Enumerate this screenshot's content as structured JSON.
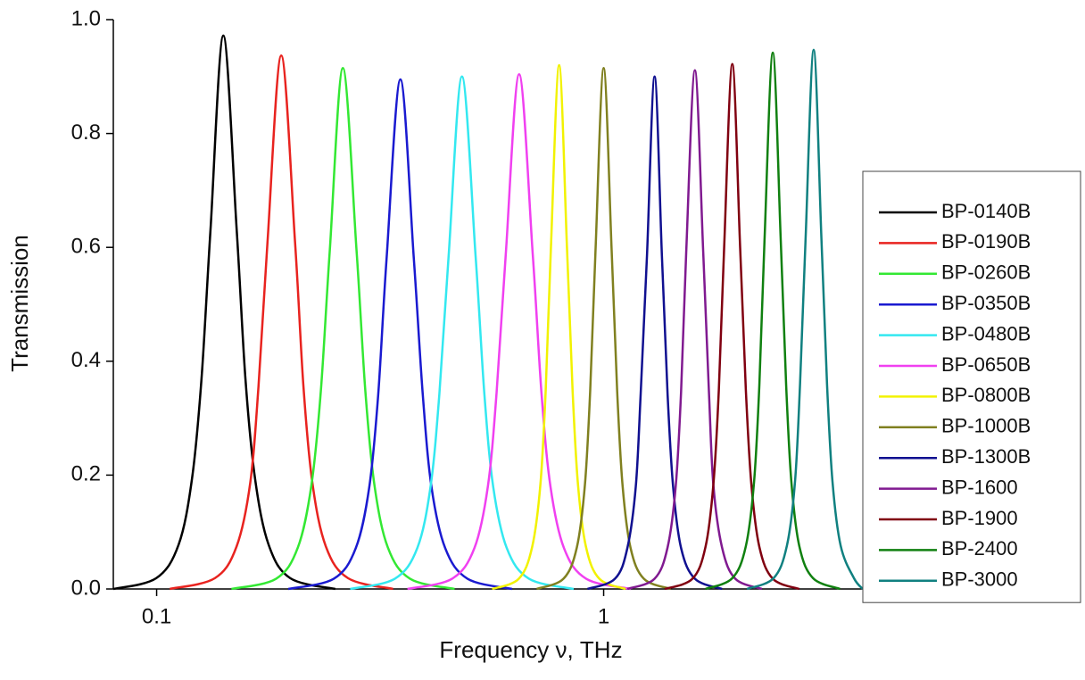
{
  "chart_data": {
    "type": "line",
    "xlabel": "Frequency ν, THz",
    "ylabel": "Transmission",
    "xscale": "log",
    "xlim": [
      0.08,
      3.8
    ],
    "xticks": [
      0.1,
      1
    ],
    "ylim": [
      0,
      1
    ],
    "yticks": [
      {
        "value": 0,
        "label": "0.0"
      },
      {
        "value": 0.2,
        "label": "0.2"
      },
      {
        "value": 0.4,
        "label": "0.4"
      },
      {
        "value": 0.6,
        "label": "0.6"
      },
      {
        "value": 0.8,
        "label": "0.8"
      },
      {
        "value": 1,
        "label": "1.0"
      }
    ],
    "legend": "right",
    "series": [
      {
        "name": "BP-0140B",
        "color": "#000000",
        "x": [
          0.08,
          0.0998,
          0.112,
          0.12,
          0.126,
          0.132,
          0.141,
          0.151,
          0.158,
          0.166,
          0.178,
          0.199,
          0.251
        ],
        "values": [
          0,
          0.019,
          0.078,
          0.194,
          0.369,
          0.632,
          0.972,
          0.632,
          0.369,
          0.194,
          0.078,
          0.019,
          0
        ]
      },
      {
        "name": "BP-0190B",
        "color": "#e8231f",
        "x": [
          0.107,
          0.135,
          0.151,
          0.162,
          0.169,
          0.177,
          0.19,
          0.204,
          0.213,
          0.223,
          0.239,
          0.268,
          0.338
        ],
        "values": [
          0,
          0.019,
          0.075,
          0.187,
          0.356,
          0.609,
          0.937,
          0.609,
          0.356,
          0.187,
          0.075,
          0.019,
          0
        ]
      },
      {
        "name": "BP-0260B",
        "color": "#33e833",
        "x": [
          0.147,
          0.185,
          0.207,
          0.222,
          0.233,
          0.244,
          0.261,
          0.28,
          0.293,
          0.307,
          0.329,
          0.369,
          0.464
        ],
        "values": [
          0,
          0.018,
          0.073,
          0.183,
          0.348,
          0.595,
          0.915,
          0.595,
          0.348,
          0.183,
          0.073,
          0.018,
          0
        ]
      },
      {
        "name": "BP-0350B",
        "color": "#1a1ad0",
        "x": [
          0.197,
          0.249,
          0.279,
          0.299,
          0.313,
          0.327,
          0.351,
          0.376,
          0.394,
          0.412,
          0.442,
          0.496,
          0.624
        ],
        "values": [
          0,
          0.018,
          0.072,
          0.179,
          0.34,
          0.582,
          0.895,
          0.582,
          0.34,
          0.179,
          0.072,
          0.018,
          0
        ]
      },
      {
        "name": "BP-0480B",
        "color": "#33e8f0",
        "x": [
          0.271,
          0.341,
          0.383,
          0.41,
          0.429,
          0.45,
          0.482,
          0.517,
          0.541,
          0.566,
          0.607,
          0.681,
          0.857
        ],
        "values": [
          0,
          0.018,
          0.072,
          0.18,
          0.342,
          0.585,
          0.9,
          0.585,
          0.342,
          0.18,
          0.072,
          0.018,
          0
        ]
      },
      {
        "name": "BP-0650B",
        "color": "#f040f0",
        "x": [
          0.364,
          0.458,
          0.514,
          0.551,
          0.576,
          0.604,
          0.647,
          0.694,
          0.726,
          0.76,
          0.815,
          0.914,
          1.15
        ],
        "values": [
          0,
          0.018,
          0.072,
          0.181,
          0.344,
          0.588,
          0.904,
          0.588,
          0.344,
          0.181,
          0.072,
          0.018,
          0
        ]
      },
      {
        "name": "BP-0800B",
        "color": "#f2f200",
        "x": [
          0.563,
          0.646,
          0.692,
          0.722,
          0.742,
          0.762,
          0.795,
          0.828,
          0.852,
          0.876,
          0.913,
          0.978,
          1.12
        ],
        "values": [
          0,
          0.018,
          0.074,
          0.184,
          0.35,
          0.598,
          0.92,
          0.598,
          0.35,
          0.184,
          0.074,
          0.018,
          0
        ]
      },
      {
        "name": "BP-1000B",
        "color": "#808020",
        "x": [
          0.708,
          0.813,
          0.871,
          0.908,
          0.933,
          0.959,
          1,
          1.042,
          1.072,
          1.102,
          1.148,
          1.23,
          1.413
        ],
        "values": [
          0,
          0.018,
          0.073,
          0.183,
          0.348,
          0.595,
          0.915,
          0.595,
          0.348,
          0.183,
          0.073,
          0.018,
          0
        ]
      },
      {
        "name": "BP-1300B",
        "color": "#101090",
        "x": [
          0.92,
          1.06,
          1.13,
          1.18,
          1.21,
          1.25,
          1.3,
          1.35,
          1.39,
          1.43,
          1.49,
          1.6,
          1.84
        ],
        "values": [
          0,
          0.018,
          0.072,
          0.18,
          0.342,
          0.585,
          0.9,
          0.585,
          0.342,
          0.18,
          0.072,
          0.018,
          0
        ]
      },
      {
        "name": "BP-1600",
        "color": "#801a90",
        "x": [
          1.13,
          1.3,
          1.39,
          1.45,
          1.49,
          1.53,
          1.6,
          1.67,
          1.72,
          1.76,
          1.84,
          1.97,
          2.26
        ],
        "values": [
          0,
          0.018,
          0.073,
          0.182,
          0.346,
          0.592,
          0.911,
          0.592,
          0.346,
          0.182,
          0.073,
          0.018,
          0
        ]
      },
      {
        "name": "BP-1900",
        "color": "#800010",
        "x": [
          1.37,
          1.58,
          1.69,
          1.76,
          1.81,
          1.86,
          1.94,
          2.02,
          2.08,
          2.14,
          2.23,
          2.39,
          2.74
        ],
        "values": [
          0,
          0.018,
          0.074,
          0.184,
          0.35,
          0.599,
          0.922,
          0.599,
          0.35,
          0.184,
          0.074,
          0.018,
          0
        ]
      },
      {
        "name": "BP-2400",
        "color": "#108010",
        "x": [
          1.69,
          1.94,
          2.08,
          2.17,
          2.23,
          2.29,
          2.39,
          2.49,
          2.56,
          2.63,
          2.74,
          2.94,
          3.38
        ],
        "values": [
          0,
          0.019,
          0.075,
          0.188,
          0.358,
          0.612,
          0.942,
          0.612,
          0.358,
          0.188,
          0.075,
          0.019,
          0
        ]
      },
      {
        "name": "BP-3000",
        "color": "#108080",
        "x": [
          2.09,
          2.4,
          2.57,
          2.68,
          2.75,
          2.83,
          2.95,
          3.07,
          3.16,
          3.25,
          3.39,
          3.63,
          3.8
        ],
        "values": [
          0,
          0.019,
          0.076,
          0.189,
          0.36,
          0.616,
          0.947,
          0.616,
          0.36,
          0.189,
          0.076,
          0.019,
          0
        ]
      }
    ]
  }
}
